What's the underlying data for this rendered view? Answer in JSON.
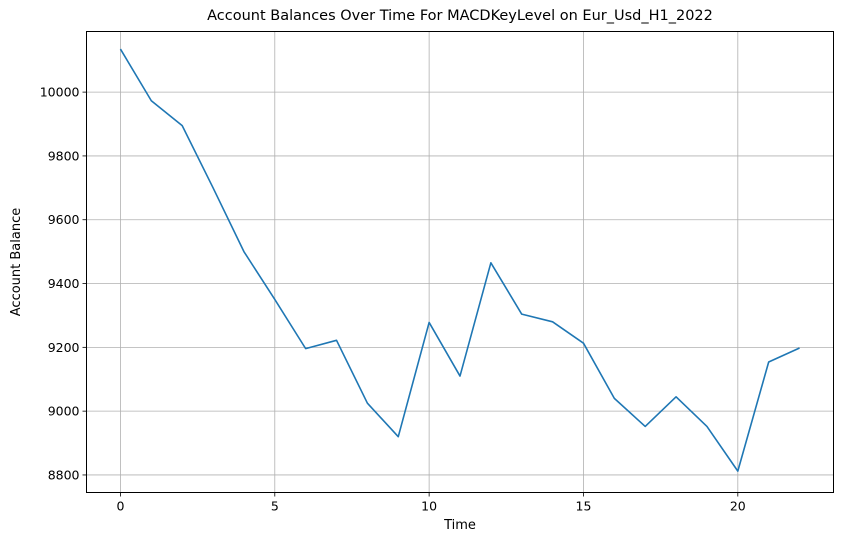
{
  "chart_data": {
    "type": "line",
    "title": "Account Balances Over Time For MACDKeyLevel on Eur_Usd_H1_2022",
    "xlabel": "Time",
    "ylabel": "Account Balance",
    "xlim": [
      -1.1,
      23.1
    ],
    "ylim": [
      8745,
      10190
    ],
    "xticks": [
      0,
      5,
      10,
      15,
      20
    ],
    "yticks": [
      8800,
      9000,
      9200,
      9400,
      9600,
      9800,
      10000
    ],
    "grid": true,
    "line_color": "#1f77b4",
    "series": [
      {
        "x": [
          0,
          1,
          2,
          3,
          4,
          5,
          6,
          7,
          8,
          9,
          10,
          11,
          12,
          13,
          14,
          15,
          16,
          17,
          18,
          19,
          20,
          21,
          22
        ],
        "values": [
          10135,
          9973,
          9895,
          9700,
          9500,
          9350,
          9196,
          9222,
          9025,
          8920,
          9278,
          9110,
          9465,
          9304,
          9280,
          9213,
          9040,
          8952,
          9045,
          8952,
          8812,
          9154,
          9198
        ]
      }
    ]
  }
}
